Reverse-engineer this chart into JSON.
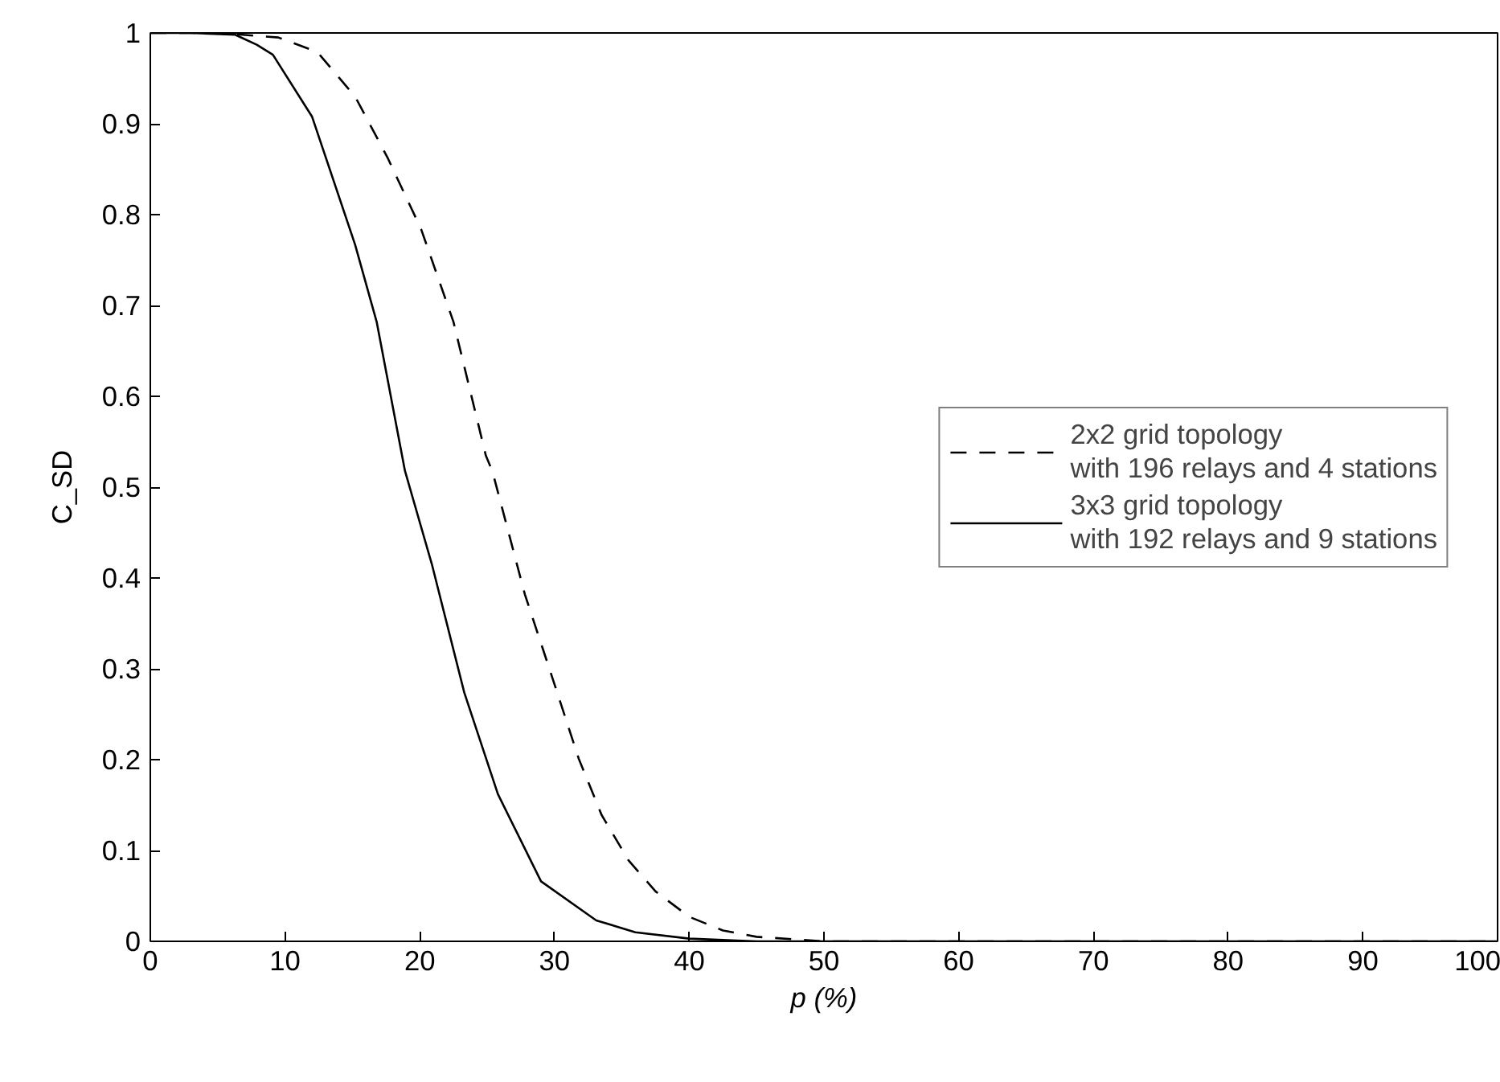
{
  "chart_data": {
    "type": "line",
    "xlabel": "p (%)",
    "ylabel": "C_SD",
    "xlim": [
      0,
      100
    ],
    "ylim": [
      0,
      1
    ],
    "xticks": [
      0,
      10,
      20,
      30,
      40,
      50,
      60,
      70,
      80,
      90,
      100
    ],
    "yticks": [
      0,
      0.1,
      0.2,
      0.3,
      0.4,
      0.5,
      0.6,
      0.7,
      0.8,
      0.9,
      1
    ],
    "legend": "right",
    "grid": false,
    "series": [
      {
        "name": "2x2 grid topology\nwith 196 relays and 4 stations",
        "color": "#000000",
        "line_style": "dashed",
        "x": [
          0,
          5,
          9.5,
          12.4,
          15.2,
          17.6,
          20.1,
          22.5,
          24.9,
          25.4,
          27.8,
          29.8,
          31.8,
          33.5,
          35.5,
          37.5,
          40,
          42.5,
          45,
          50,
          60,
          80,
          100
        ],
        "values": [
          1,
          1,
          0.995,
          0.979,
          0.93,
          0.863,
          0.784,
          0.682,
          0.535,
          0.517,
          0.382,
          0.292,
          0.201,
          0.139,
          0.089,
          0.055,
          0.027,
          0.012,
          0.005,
          0,
          0,
          0,
          0
        ]
      },
      {
        "name": "3x3 grid topology\nwith 192 relays and 9 stations",
        "color": "#000000",
        "line_style": "solid",
        "x": [
          0,
          3,
          6.3,
          7.9,
          9.1,
          12,
          15.2,
          16.8,
          18.9,
          20.9,
          23.3,
          25.8,
          29,
          33.1,
          36,
          40,
          45,
          50,
          60,
          80,
          100
        ],
        "values": [
          1,
          1,
          0.998,
          0.987,
          0.976,
          0.908,
          0.767,
          0.682,
          0.518,
          0.415,
          0.274,
          0.162,
          0.066,
          0.023,
          0.01,
          0.003,
          0,
          0,
          0,
          0,
          0
        ]
      }
    ]
  }
}
